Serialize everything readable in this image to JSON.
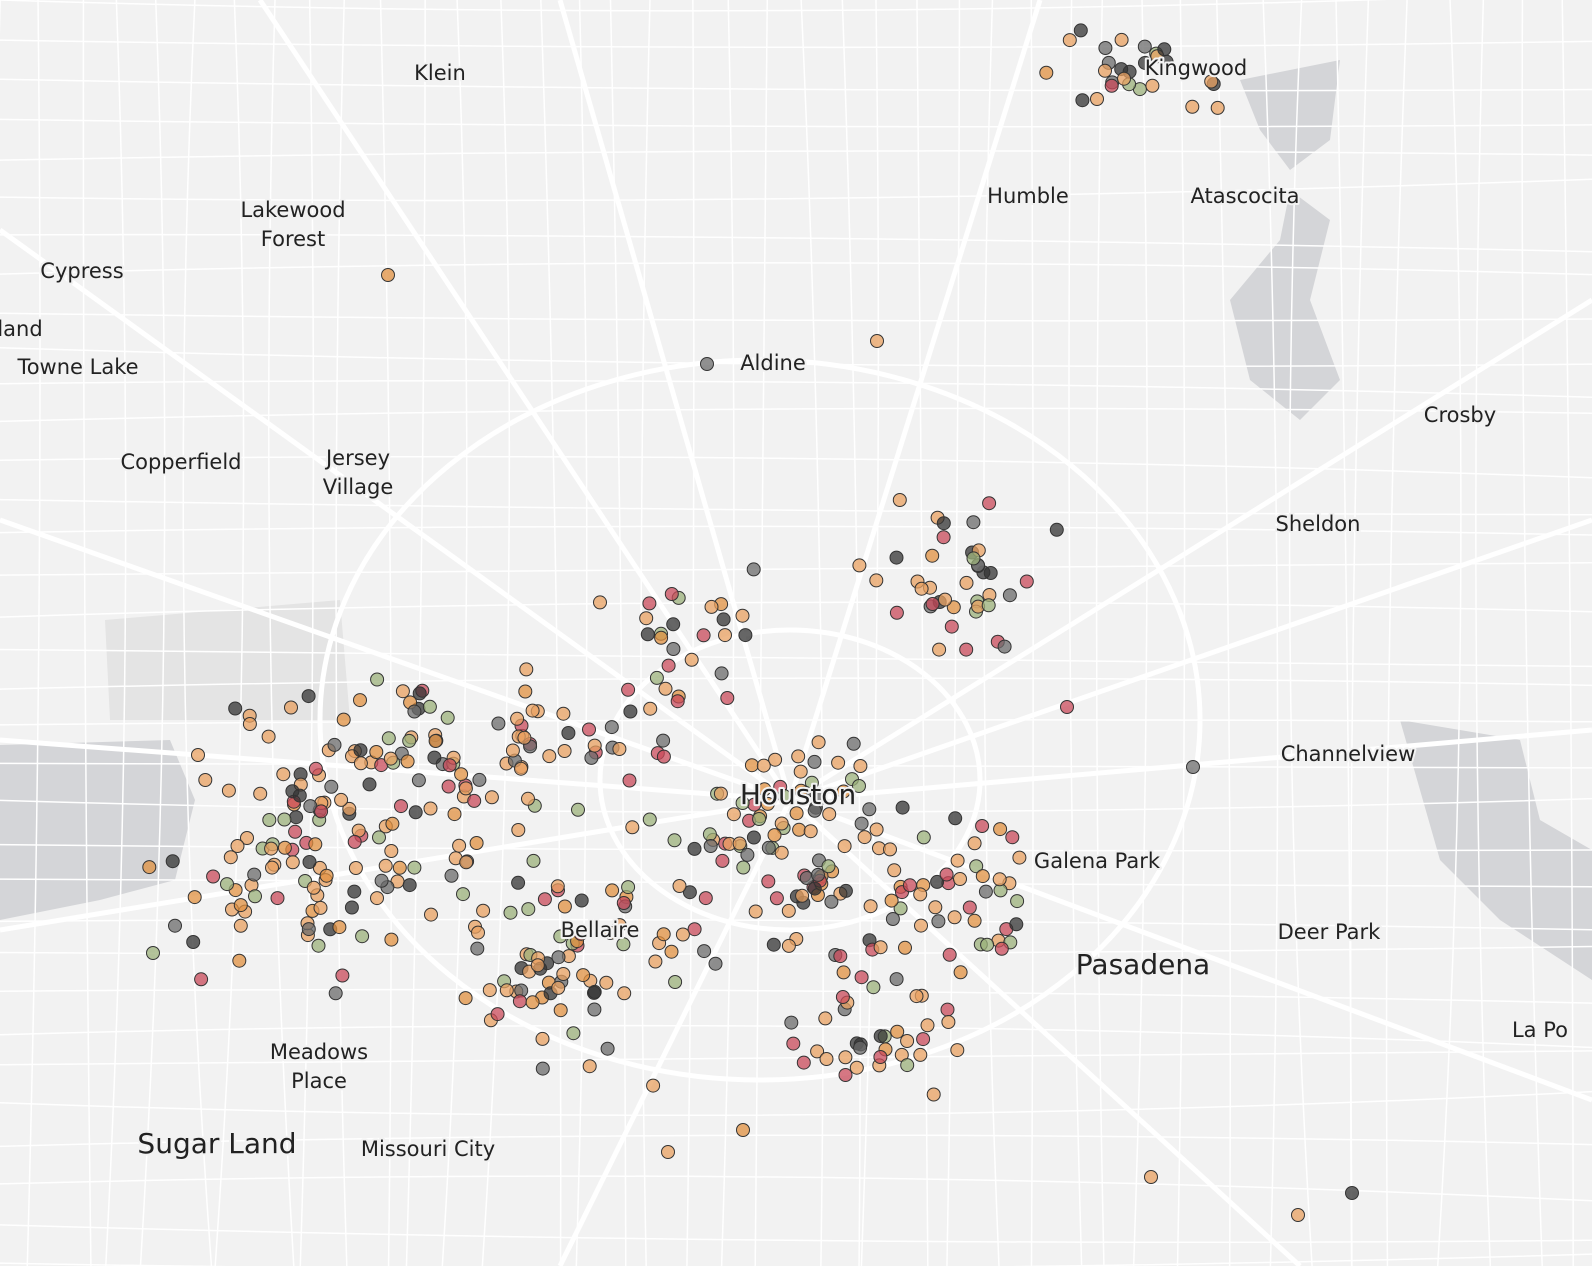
{
  "map": {
    "places": [
      {
        "lines": [
          "Klein"
        ]
      },
      {
        "lines": [
          "Lakewood",
          "Forest"
        ]
      },
      {
        "lines": [
          "Cypress"
        ]
      },
      {
        "lines": [
          "land"
        ]
      },
      {
        "lines": [
          "Towne Lake"
        ]
      },
      {
        "lines": [
          "Copperfield"
        ]
      },
      {
        "lines": [
          "Jersey",
          "Village"
        ]
      },
      {
        "lines": [
          "Aldine"
        ]
      },
      {
        "lines": [
          "Humble"
        ]
      },
      {
        "lines": [
          "Atascocita"
        ]
      },
      {
        "lines": [
          "Kingwood"
        ]
      },
      {
        "lines": [
          "Crosby"
        ]
      },
      {
        "lines": [
          "Sheldon"
        ]
      },
      {
        "lines": [
          "Channelview"
        ]
      },
      {
        "lines": [
          "Houston"
        ]
      },
      {
        "lines": [
          "Galena Park"
        ]
      },
      {
        "lines": [
          "Pasadena"
        ]
      },
      {
        "lines": [
          "Deer Park"
        ]
      },
      {
        "lines": [
          "La Po"
        ]
      },
      {
        "lines": [
          "Bellaire"
        ]
      },
      {
        "lines": [
          "Meadows",
          "Place"
        ]
      },
      {
        "lines": [
          "Sugar Land"
        ]
      },
      {
        "lines": [
          "Missouri City"
        ]
      }
    ]
  }
}
